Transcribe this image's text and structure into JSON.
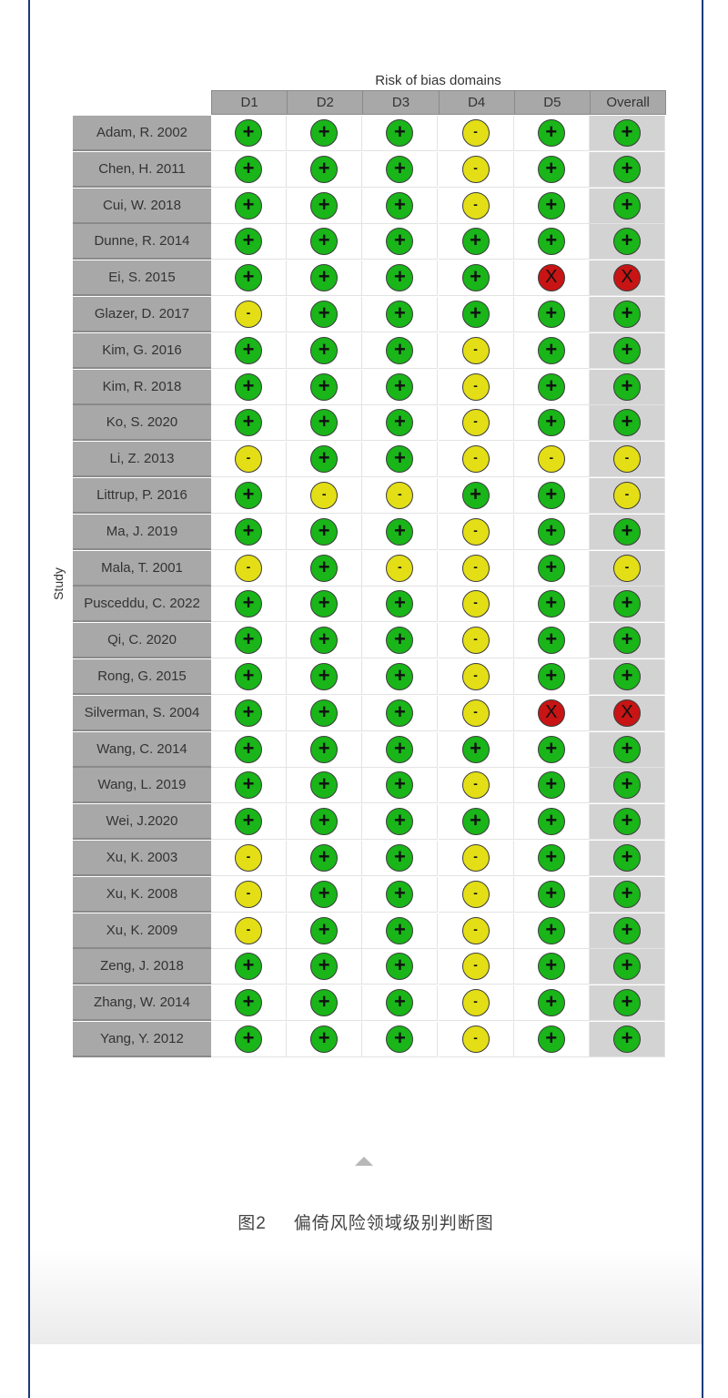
{
  "figure": {
    "caption_number": "图2",
    "caption_text": "偏倚风险领域级别判断图"
  },
  "colors": {
    "low": "#19b519",
    "some_concerns": "#e3de16",
    "high": "#c81414",
    "border": "#1a3a7a"
  },
  "chart_data": {
    "type": "table",
    "title": "Risk of bias domains",
    "ylabel": "Study",
    "columns": [
      "D1",
      "D2",
      "D3",
      "D4",
      "D5",
      "Overall"
    ],
    "legend_codes": {
      "+": "low",
      "-": "some_concerns",
      "X": "high"
    },
    "rows": [
      {
        "study": "Adam, R. 2002",
        "values": [
          "+",
          "+",
          "+",
          "-",
          "+",
          "+"
        ]
      },
      {
        "study": "Chen, H. 2011",
        "values": [
          "+",
          "+",
          "+",
          "-",
          "+",
          "+"
        ]
      },
      {
        "study": "Cui, W. 2018",
        "values": [
          "+",
          "+",
          "+",
          "-",
          "+",
          "+"
        ]
      },
      {
        "study": "Dunne, R. 2014",
        "values": [
          "+",
          "+",
          "+",
          "+",
          "+",
          "+"
        ]
      },
      {
        "study": "Ei, S. 2015",
        "values": [
          "+",
          "+",
          "+",
          "+",
          "X",
          "X"
        ]
      },
      {
        "study": "Glazer, D. 2017",
        "values": [
          "-",
          "+",
          "+",
          "+",
          "+",
          "+"
        ]
      },
      {
        "study": "Kim, G. 2016",
        "values": [
          "+",
          "+",
          "+",
          "-",
          "+",
          "+"
        ]
      },
      {
        "study": "Kim, R. 2018",
        "values": [
          "+",
          "+",
          "+",
          "-",
          "+",
          "+"
        ]
      },
      {
        "study": "Ko, S. 2020",
        "values": [
          "+",
          "+",
          "+",
          "-",
          "+",
          "+"
        ]
      },
      {
        "study": "Li, Z. 2013",
        "values": [
          "-",
          "+",
          "+",
          "-",
          "-",
          "-"
        ]
      },
      {
        "study": "Littrup, P. 2016",
        "values": [
          "+",
          "-",
          "-",
          "+",
          "+",
          "-"
        ]
      },
      {
        "study": "Ma, J. 2019",
        "values": [
          "+",
          "+",
          "+",
          "-",
          "+",
          "+"
        ]
      },
      {
        "study": "Mala, T. 2001",
        "values": [
          "-",
          "+",
          "-",
          "-",
          "+",
          "-"
        ]
      },
      {
        "study": "Pusceddu, C. 2022",
        "values": [
          "+",
          "+",
          "+",
          "-",
          "+",
          "+"
        ]
      },
      {
        "study": "Qi, C. 2020",
        "values": [
          "+",
          "+",
          "+",
          "-",
          "+",
          "+"
        ]
      },
      {
        "study": "Rong, G. 2015",
        "values": [
          "+",
          "+",
          "+",
          "-",
          "+",
          "+"
        ]
      },
      {
        "study": "Silverman, S. 2004",
        "values": [
          "+",
          "+",
          "+",
          "-",
          "X",
          "X"
        ]
      },
      {
        "study": "Wang, C. 2014",
        "values": [
          "+",
          "+",
          "+",
          "+",
          "+",
          "+"
        ]
      },
      {
        "study": "Wang, L. 2019",
        "values": [
          "+",
          "+",
          "+",
          "-",
          "+",
          "+"
        ]
      },
      {
        "study": "Wei, J.2020",
        "values": [
          "+",
          "+",
          "+",
          "+",
          "+",
          "+"
        ]
      },
      {
        "study": "Xu, K. 2003",
        "values": [
          "-",
          "+",
          "+",
          "-",
          "+",
          "+"
        ]
      },
      {
        "study": "Xu, K. 2008",
        "values": [
          "-",
          "+",
          "+",
          "-",
          "+",
          "+"
        ]
      },
      {
        "study": "Xu, K. 2009",
        "values": [
          "-",
          "+",
          "+",
          "-",
          "+",
          "+"
        ]
      },
      {
        "study": "Zeng, J. 2018",
        "values": [
          "+",
          "+",
          "+",
          "-",
          "+",
          "+"
        ]
      },
      {
        "study": "Zhang, W. 2014",
        "values": [
          "+",
          "+",
          "+",
          "-",
          "+",
          "+"
        ]
      },
      {
        "study": "Yang, Y. 2012",
        "values": [
          "+",
          "+",
          "+",
          "-",
          "+",
          "+"
        ]
      }
    ]
  }
}
